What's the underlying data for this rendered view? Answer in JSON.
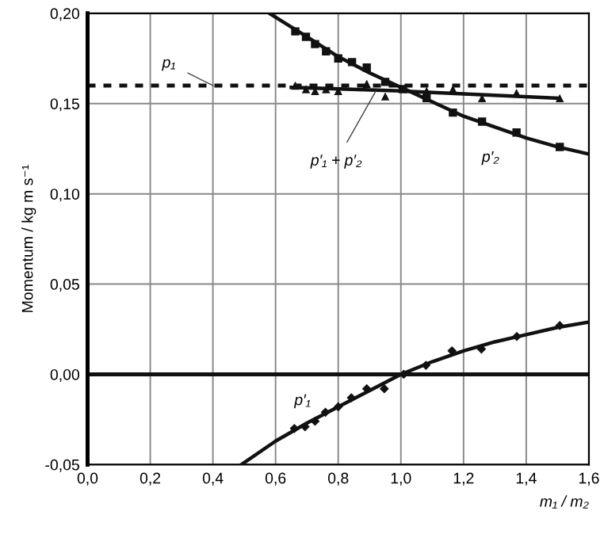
{
  "chart_data": {
    "type": "scatter",
    "xlabel": "m₁ / m₂",
    "ylabel": "Momentum / kg m s⁻¹",
    "xlim": [
      0.0,
      1.6
    ],
    "ylim": [
      -0.05,
      0.2
    ],
    "xticks": [
      {
        "value": 0.0,
        "label": "0,0"
      },
      {
        "value": 0.2,
        "label": "0,2"
      },
      {
        "value": 0.4,
        "label": "0,4"
      },
      {
        "value": 0.6,
        "label": "0,6"
      },
      {
        "value": 0.8,
        "label": "0,8"
      },
      {
        "value": 1.0,
        "label": "1,0"
      },
      {
        "value": 1.2,
        "label": "1,2"
      },
      {
        "value": 1.4,
        "label": "1,4"
      },
      {
        "value": 1.6,
        "label": "1,6"
      }
    ],
    "yticks": [
      {
        "value": -0.05,
        "label": "-0,05"
      },
      {
        "value": 0.0,
        "label": "0,00"
      },
      {
        "value": 0.05,
        "label": "0,05"
      },
      {
        "value": 0.1,
        "label": "0,10"
      },
      {
        "value": 0.15,
        "label": "0,15"
      },
      {
        "value": 0.2,
        "label": "0,20"
      }
    ],
    "grid": true,
    "series": [
      {
        "marker": "square",
        "color": "#111111",
        "x": [
          0.663,
          0.697,
          0.726,
          0.761,
          0.8,
          0.844,
          0.891,
          0.95,
          1.006,
          1.082,
          1.166,
          1.259,
          1.369,
          1.507
        ],
        "values": [
          0.19,
          0.187,
          0.183,
          0.179,
          0.175,
          0.173,
          0.17,
          0.162,
          0.158,
          0.153,
          0.145,
          0.14,
          0.134,
          0.126
        ]
      },
      {
        "type": "line",
        "color": "#111111",
        "x": [
          0.58,
          0.7,
          0.8,
          0.9,
          1.0,
          1.1,
          1.2,
          1.3,
          1.4,
          1.5,
          1.6
        ],
        "values": [
          0.2,
          0.187,
          0.176,
          0.167,
          0.159,
          0.151,
          0.143,
          0.137,
          0.131,
          0.126,
          0.122
        ]
      },
      {
        "marker": "triangle",
        "color": "#111111",
        "x": [
          0.663,
          0.697,
          0.726,
          0.761,
          0.8,
          0.891,
          0.95,
          1.006,
          1.082,
          1.166,
          1.259,
          1.369,
          1.507
        ],
        "values": [
          0.16,
          0.158,
          0.157,
          0.158,
          0.157,
          0.161,
          0.154,
          null,
          0.157,
          0.158,
          0.153,
          0.156,
          0.153
        ]
      },
      {
        "type": "line",
        "color": "#111111",
        "x": [
          0.65,
          1.0,
          1.5
        ],
        "values": [
          0.159,
          0.157,
          0.153
        ]
      },
      {
        "marker": "diamond",
        "color": "#111111",
        "x": [
          0.66,
          0.694,
          0.726,
          0.759,
          0.8,
          0.842,
          0.891,
          0.947,
          1.009,
          1.08,
          1.163,
          1.257,
          1.37,
          1.507
        ],
        "values": [
          -0.03,
          -0.029,
          -0.026,
          -0.021,
          -0.018,
          -0.013,
          -0.008,
          -0.008,
          0.0,
          0.005,
          0.013,
          0.014,
          0.021,
          0.027
        ]
      },
      {
        "type": "line",
        "color": "#111111",
        "x": [
          0.491,
          0.6,
          0.7,
          0.8,
          0.9,
          1.0,
          1.1,
          1.2,
          1.3,
          1.4,
          1.5,
          1.6
        ],
        "values": [
          -0.05,
          -0.037,
          -0.027,
          -0.018,
          -0.009,
          0.0,
          0.007,
          0.013,
          0.018,
          0.022,
          0.026,
          0.029
        ]
      }
    ],
    "ref_lines": [
      {
        "axis": "y",
        "value": 0.16,
        "line_style": "dashed",
        "color": "#111111"
      },
      {
        "axis": "y",
        "value": 0.0,
        "line_style": "solid",
        "color": "#111111"
      }
    ],
    "annotations": [
      {
        "text": "p₁",
        "x": 0.4,
        "y": 0.16
      },
      {
        "text": "p′₁ + p′₂",
        "x": 0.92,
        "y": 0.157
      },
      {
        "text": "p′₂",
        "x": 1.3,
        "y": 0.137
      },
      {
        "text": "p′₁",
        "x": 0.7,
        "y": -0.027
      }
    ]
  }
}
